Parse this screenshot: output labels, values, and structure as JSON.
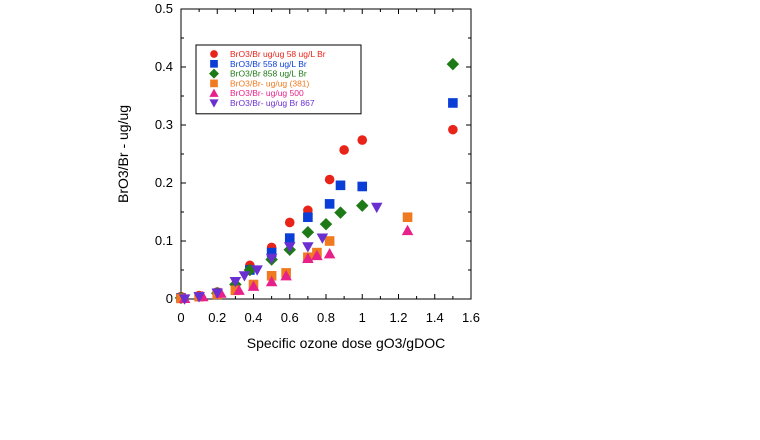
{
  "chart_data": {
    "type": "scatter",
    "title": "",
    "xlabel": "Specific ozone dose gO3/gDOC",
    "ylabel": "BrO3/Br - ug/ug",
    "xlim": [
      0,
      1.6
    ],
    "ylim": [
      0,
      0.5
    ],
    "x_ticks": [
      "0",
      "0.2",
      "0.4",
      "0.6",
      "0.8",
      "1",
      "1.2",
      "1.4",
      "1.6"
    ],
    "y_ticks": [
      "0",
      "0.1",
      "0.2",
      "0.3",
      "0.4",
      "0.5"
    ],
    "grid": false,
    "legend_position": "top-left",
    "series": [
      {
        "name": "BrO3/Br ug/ug 58 ug/L Br",
        "color": "#e8231a",
        "marker": "circle",
        "points": [
          [
            0,
            0.004
          ],
          [
            0.1,
            0.006
          ],
          [
            0.2,
            0.012
          ],
          [
            0.38,
            0.058
          ],
          [
            0.5,
            0.089
          ],
          [
            0.6,
            0.132
          ],
          [
            0.7,
            0.153
          ],
          [
            0.82,
            0.206
          ],
          [
            0.9,
            0.257
          ],
          [
            1.0,
            0.274
          ],
          [
            1.5,
            0.292
          ]
        ]
      },
      {
        "name": "BrO3/Br 558 ug/L Br",
        "color": "#0a3ed6",
        "marker": "square",
        "points": [
          [
            0,
            0.002
          ],
          [
            0.2,
            0.01
          ],
          [
            0.38,
            0.05
          ],
          [
            0.5,
            0.08
          ],
          [
            0.6,
            0.105
          ],
          [
            0.7,
            0.141
          ],
          [
            0.82,
            0.164
          ],
          [
            0.88,
            0.196
          ],
          [
            1.0,
            0.194
          ],
          [
            1.5,
            0.338
          ]
        ]
      },
      {
        "name": "BrO3/Br 858 ug/L Br",
        "color": "#1e7a17",
        "marker": "diamond",
        "points": [
          [
            0,
            0.002
          ],
          [
            0.2,
            0.01
          ],
          [
            0.3,
            0.025
          ],
          [
            0.38,
            0.05
          ],
          [
            0.5,
            0.068
          ],
          [
            0.6,
            0.085
          ],
          [
            0.7,
            0.115
          ],
          [
            0.8,
            0.129
          ],
          [
            0.88,
            0.149
          ],
          [
            1.0,
            0.161
          ],
          [
            1.5,
            0.405
          ]
        ]
      },
      {
        "name": "BrO3/Br- ug/ug (381)",
        "color": "#f07a20",
        "marker": "square",
        "points": [
          [
            0,
            0.001
          ],
          [
            0.1,
            0.004
          ],
          [
            0.2,
            0.008
          ],
          [
            0.3,
            0.015
          ],
          [
            0.4,
            0.025
          ],
          [
            0.5,
            0.04
          ],
          [
            0.58,
            0.045
          ],
          [
            0.7,
            0.072
          ],
          [
            0.75,
            0.08
          ],
          [
            0.82,
            0.1
          ],
          [
            1.25,
            0.141
          ]
        ]
      },
      {
        "name": "BrO3/Br- ug/ug 500",
        "color": "#e8208a",
        "marker": "triangle-up",
        "points": [
          [
            0.02,
            0.001
          ],
          [
            0.12,
            0.004
          ],
          [
            0.22,
            0.01
          ],
          [
            0.32,
            0.015
          ],
          [
            0.4,
            0.022
          ],
          [
            0.5,
            0.03
          ],
          [
            0.58,
            0.04
          ],
          [
            0.7,
            0.07
          ],
          [
            0.75,
            0.075
          ],
          [
            0.82,
            0.078
          ],
          [
            1.25,
            0.118
          ]
        ]
      },
      {
        "name": "BrO3/Br- ug/ug Br 867",
        "color": "#6a2fd0",
        "marker": "triangle-down",
        "points": [
          [
            0.02,
            0.0
          ],
          [
            0.1,
            0.004
          ],
          [
            0.2,
            0.01
          ],
          [
            0.3,
            0.03
          ],
          [
            0.35,
            0.04
          ],
          [
            0.42,
            0.05
          ],
          [
            0.5,
            0.07
          ],
          [
            0.6,
            0.09
          ],
          [
            0.7,
            0.09
          ],
          [
            0.78,
            0.105
          ],
          [
            1.08,
            0.158
          ]
        ]
      }
    ]
  }
}
